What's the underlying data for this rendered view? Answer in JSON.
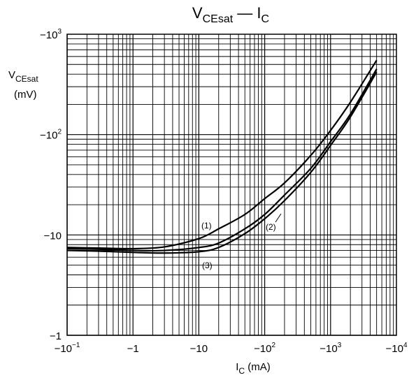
{
  "chart_data": {
    "type": "line",
    "title": {
      "main": "V",
      "sub": "CEsat",
      "sep": " — ",
      "main2": "I",
      "sub2": "C"
    },
    "ylabel": {
      "main": "V",
      "sub": "CEsat",
      "unit": "(mV)"
    },
    "xlabel": {
      "main": "I",
      "sub": "C",
      "unit": "(mA)"
    },
    "x_scale": "log",
    "y_scale": "log",
    "xlim": [
      -0.1,
      -10000
    ],
    "ylim": [
      -1,
      -1000
    ],
    "grid": true,
    "x_ticks": [
      {
        "value": -0.1,
        "base": "−10",
        "exp": "−1"
      },
      {
        "value": -1,
        "base": "−1",
        "exp": ""
      },
      {
        "value": -10,
        "base": "−10",
        "exp": ""
      },
      {
        "value": -100,
        "base": "−10",
        "exp": "2"
      },
      {
        "value": -1000,
        "base": "−10",
        "exp": "3"
      },
      {
        "value": -10000,
        "base": "−10",
        "exp": "4"
      }
    ],
    "y_ticks": [
      {
        "value": -1,
        "base": "−1",
        "exp": ""
      },
      {
        "value": -10,
        "base": "−10",
        "exp": ""
      },
      {
        "value": -100,
        "base": "−10",
        "exp": "2"
      },
      {
        "value": -1000,
        "base": "−10",
        "exp": "3"
      }
    ],
    "series": [
      {
        "name": "(1)",
        "x": [
          -0.1,
          -0.3,
          -1,
          -3,
          -10,
          -20,
          -50,
          -100,
          -200,
          -500,
          -1000,
          -2000,
          -5000
        ],
        "y": [
          -7.5,
          -7.4,
          -7.3,
          -7.6,
          -9.2,
          -11.5,
          -16,
          -23,
          -33,
          -62,
          -110,
          -210,
          -550
        ]
      },
      {
        "name": "(2)",
        "x": [
          -0.1,
          -0.3,
          -1,
          -3,
          -10,
          -20,
          -50,
          -100,
          -200,
          -500,
          -1000,
          -2000,
          -5000
        ],
        "y": [
          -7.3,
          -7.2,
          -7.0,
          -7.0,
          -7.5,
          -8.3,
          -11.5,
          -16,
          -25,
          -46,
          -85,
          -160,
          -450
        ]
      },
      {
        "name": "(3)",
        "x": [
          -0.1,
          -0.3,
          -1,
          -3,
          -10,
          -20,
          -50,
          -100,
          -200,
          -500,
          -1000,
          -2000,
          -5000
        ],
        "y": [
          -7.0,
          -6.9,
          -6.7,
          -6.6,
          -6.8,
          -7.5,
          -10.3,
          -14.5,
          -22,
          -42,
          -78,
          -150,
          -420
        ]
      }
    ],
    "annotations": [
      "(1)",
      "(2)",
      "(3)"
    ]
  }
}
